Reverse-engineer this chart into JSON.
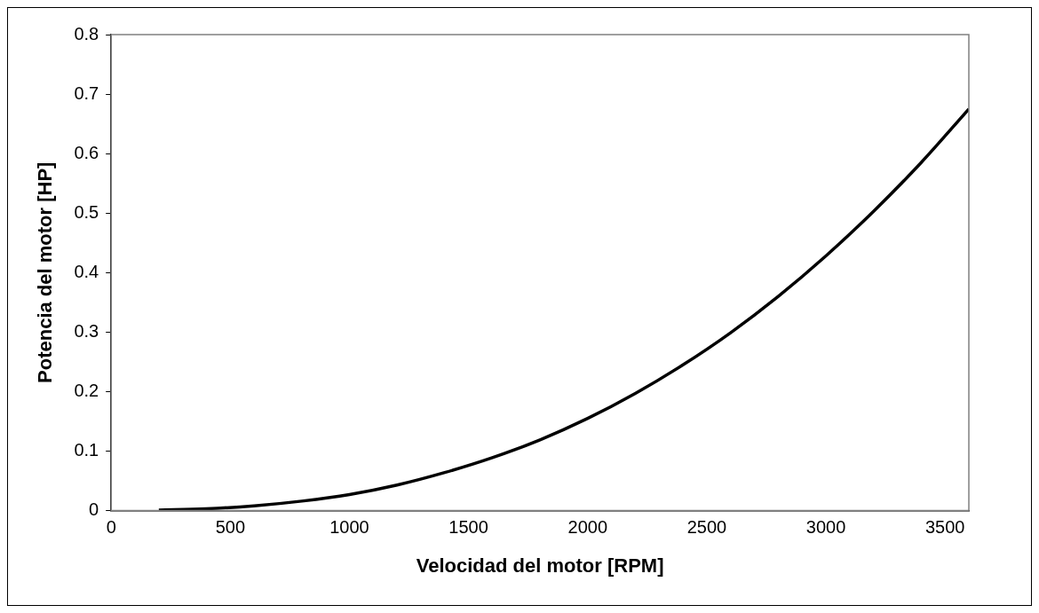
{
  "chart_data": {
    "type": "line",
    "xlabel": "Velocidad del motor [RPM]",
    "ylabel": "Potencia del motor [HP]",
    "x": [
      200,
      400,
      600,
      800,
      1000,
      1200,
      1400,
      1600,
      1800,
      2000,
      2200,
      2400,
      2600,
      2800,
      3000,
      3200,
      3400,
      3600
    ],
    "series": [
      {
        "color": "#000000",
        "values": [
          0.001,
          0.003,
          0.008,
          0.016,
          0.027,
          0.043,
          0.064,
          0.089,
          0.119,
          0.155,
          0.197,
          0.245,
          0.299,
          0.36,
          0.428,
          0.503,
          0.585,
          0.675
        ]
      }
    ],
    "xlim": [
      0,
      3600
    ],
    "xticks": [
      0,
      500,
      1000,
      1500,
      2000,
      2500,
      3000,
      3500
    ],
    "ylim": [
      0,
      0.8
    ],
    "yticks": [
      0,
      0.1,
      0.2,
      0.3,
      0.4,
      0.5,
      0.6,
      0.7,
      0.8
    ],
    "grid": false,
    "legend": false,
    "marker": "none",
    "line_style": "solid"
  }
}
